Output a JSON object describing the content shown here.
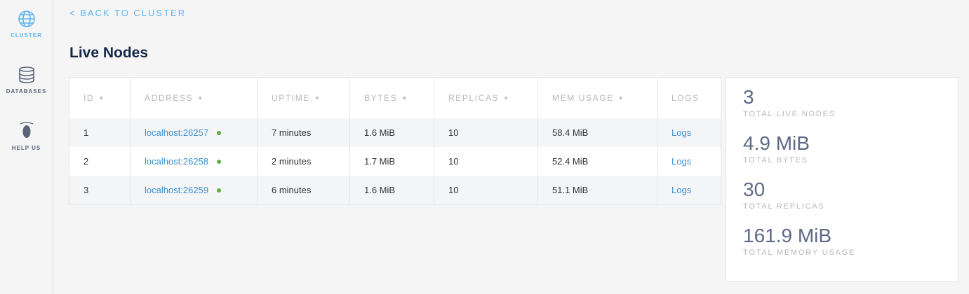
{
  "sidebar": {
    "items": [
      {
        "label": "CLUSTER",
        "icon": "globe-icon",
        "active": true
      },
      {
        "label": "DATABASES",
        "icon": "database-icon"
      },
      {
        "label": "HELP US",
        "icon": "cockroach-icon"
      }
    ]
  },
  "back_link": "< BACK TO CLUSTER",
  "title": "Live Nodes",
  "table": {
    "columns": [
      "ID",
      "ADDRESS",
      "UPTIME",
      "BYTES",
      "REPLICAS",
      "MEM USAGE",
      "LOGS"
    ],
    "rows": [
      {
        "id": "1",
        "address": "localhost:26257",
        "uptime": "7 minutes",
        "bytes": "1.6 MiB",
        "replicas": "10",
        "mem": "58.4 MiB",
        "logs": "Logs"
      },
      {
        "id": "2",
        "address": "localhost:26258",
        "uptime": "2 minutes",
        "bytes": "1.7 MiB",
        "replicas": "10",
        "mem": "52.4 MiB",
        "logs": "Logs"
      },
      {
        "id": "3",
        "address": "localhost:26259",
        "uptime": "6 minutes",
        "bytes": "1.6 MiB",
        "replicas": "10",
        "mem": "51.1 MiB",
        "logs": "Logs"
      }
    ]
  },
  "summary": [
    {
      "value": "3",
      "label": "TOTAL LIVE NODES"
    },
    {
      "value": "4.9 MiB",
      "label": "TOTAL BYTES"
    },
    {
      "value": "30",
      "label": "TOTAL REPLICAS"
    },
    {
      "value": "161.9 MiB",
      "label": "TOTAL MEMORY USAGE"
    }
  ],
  "colors": {
    "accent": "#5fb4f0",
    "link": "#3d8fd0",
    "status_live": "#5cb03e",
    "title": "#152849"
  }
}
